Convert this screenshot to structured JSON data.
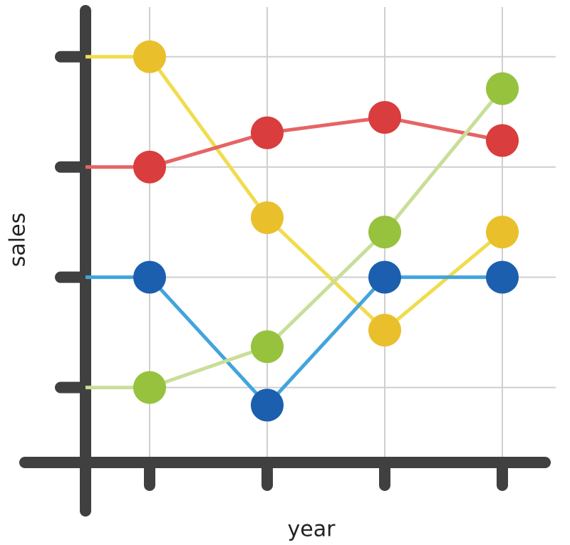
{
  "chart_data": {
    "type": "line",
    "x_label": "year",
    "y_label": "sales",
    "categories": [
      null,
      null,
      null,
      null
    ],
    "series": [
      {
        "color": "#e9c02c",
        "line_color": "#f0dc4f",
        "values": [
          4,
          2.54,
          1.52,
          2.41
        ]
      },
      {
        "color": "#d93d3d",
        "line_color": "#e66464",
        "values": [
          3,
          3.31,
          3.45,
          3.24
        ]
      },
      {
        "color": "#1b5fae",
        "line_color": "#43a4dc",
        "values": [
          2,
          0.84,
          2,
          2
        ]
      },
      {
        "color": "#96c23e",
        "line_color": "#c9de98",
        "values": [
          1,
          1.37,
          2.41,
          3.71
        ]
      }
    ],
    "ylim": [
      0.32,
      4.45
    ],
    "yticks": [
      1,
      2,
      3,
      4
    ],
    "grid": true
  }
}
